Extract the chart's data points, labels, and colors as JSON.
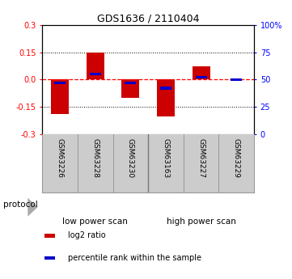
{
  "title": "GDS1636 / 2110404",
  "samples": [
    "GSM63226",
    "GSM63228",
    "GSM63230",
    "GSM63163",
    "GSM63227",
    "GSM63229"
  ],
  "log2_ratio": [
    -0.19,
    0.15,
    -0.1,
    -0.205,
    0.072,
    0.002
  ],
  "percentile_rank": [
    47,
    55,
    47,
    42,
    52,
    50
  ],
  "ylim_left": [
    -0.3,
    0.3
  ],
  "ylim_right": [
    0,
    100
  ],
  "left_ticks": [
    -0.3,
    -0.15,
    0.0,
    0.15,
    0.3
  ],
  "right_ticks": [
    0,
    25,
    50,
    75,
    100
  ],
  "right_tick_labels": [
    "0",
    "25",
    "50",
    "75",
    "100%"
  ],
  "groups": [
    {
      "label": "low power scan",
      "color": "#88ee88",
      "start": 0,
      "end": 2
    },
    {
      "label": "high power scan",
      "color": "#44cc44",
      "start": 3,
      "end": 5
    }
  ],
  "bar_color": "#cc0000",
  "percentile_color": "#0000cc",
  "zero_line_color": "#ff0000",
  "grid_color": "#000000",
  "bg_color": "#ffffff",
  "protocol_label": "protocol",
  "legend_items": [
    {
      "color": "#cc0000",
      "label": "log2 ratio"
    },
    {
      "color": "#0000cc",
      "label": "percentile rank within the sample"
    }
  ]
}
